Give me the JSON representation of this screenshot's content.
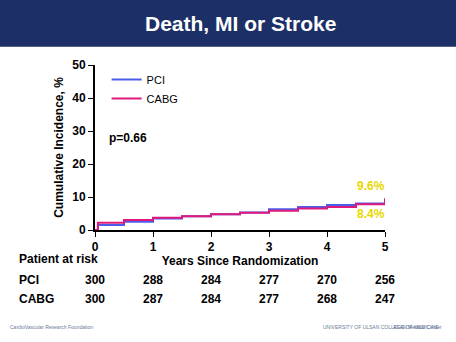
{
  "chart_data": {
    "type": "line",
    "title": "Death, MI or Stroke",
    "x_label": "Years Since Randomization",
    "y_label": "Cumulative Incidence, %",
    "xlim": [
      0,
      5
    ],
    "xticks": [
      0,
      1,
      2,
      3,
      4,
      5
    ],
    "ylim": [
      0,
      50
    ],
    "yticks": [
      0,
      10,
      20,
      30,
      40,
      50
    ],
    "grid": false,
    "legend": "upper left",
    "line_style": "step",
    "annotations": [
      "p=0.66"
    ],
    "series": [
      {
        "name": "PCI",
        "color": "#4a5ee8",
        "x": [
          0,
          0.05,
          0.5,
          1,
          1.5,
          2,
          2.5,
          3,
          3.5,
          4,
          4.5,
          5
        ],
        "values": [
          0,
          1.5,
          2.5,
          3.5,
          4.2,
          4.8,
          5.3,
          6.3,
          7.0,
          7.6,
          8.0,
          8.4
        ],
        "value_labels": [
          null,
          null,
          null,
          null,
          null,
          null,
          null,
          null,
          null,
          null,
          null,
          "8.4%"
        ]
      },
      {
        "name": "CABG",
        "color": "#e0187c",
        "x": [
          0,
          0.05,
          0.5,
          1,
          1.5,
          2,
          2.5,
          3,
          3.5,
          4,
          4.5,
          5
        ],
        "values": [
          0,
          2.2,
          3.0,
          3.7,
          4.2,
          4.8,
          5.2,
          5.8,
          6.5,
          7.0,
          7.8,
          9.6
        ],
        "value_labels": [
          null,
          null,
          null,
          null,
          null,
          null,
          null,
          null,
          null,
          null,
          null,
          "9.6%"
        ]
      }
    ],
    "at_risk": {
      "title": "Patient at risk",
      "times": [
        0,
        1,
        2,
        3,
        4,
        5
      ],
      "rows": [
        {
          "name": "PCI",
          "values": [
            300,
            288,
            284,
            277,
            270,
            256
          ]
        },
        {
          "name": "CABG",
          "values": [
            300,
            287,
            284,
            277,
            268,
            247
          ]
        }
      ]
    },
    "footer": [
      "CardioVascular Research Foundation",
      "UNIVERSITY OF ULSAN COLLEGE OF MEDICINE",
      "ASAN Medical Center"
    ]
  }
}
